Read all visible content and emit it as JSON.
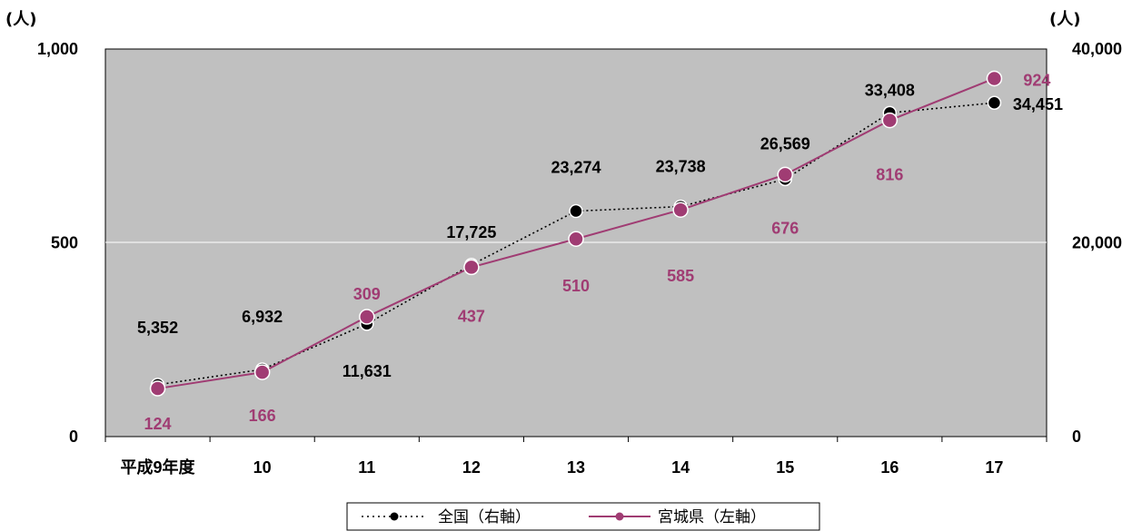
{
  "chart_data": {
    "type": "line",
    "left_axis_unit": "(人)",
    "right_axis_unit": "(人)",
    "categories": [
      "平成9年度",
      "10",
      "11",
      "12",
      "13",
      "14",
      "15",
      "16",
      "17"
    ],
    "left_ylim": [
      0,
      1000
    ],
    "left_ticks": [
      "0",
      "500",
      "1,000"
    ],
    "right_ylim": [
      0,
      40000
    ],
    "right_ticks": [
      "0",
      "20,000",
      "40,000"
    ],
    "grid": "horizontal at 500",
    "legend_position": "bottom-center",
    "series": [
      {
        "name": "全国（右軸）",
        "axis": "right",
        "style": "dotted",
        "color": "#000000",
        "values": [
          5352,
          6932,
          11631,
          17725,
          23274,
          23738,
          26569,
          33408,
          34451
        ],
        "labels": [
          "5,352",
          "6,932",
          "11,631",
          "17,725",
          "23,274",
          "23,738",
          "26,569",
          "33,408",
          "34,451"
        ]
      },
      {
        "name": "宮城県（左軸）",
        "axis": "left",
        "style": "solid",
        "color": "#a03c73",
        "values": [
          124,
          166,
          309,
          437,
          510,
          585,
          676,
          816,
          924
        ],
        "labels": [
          "124",
          "166",
          "309",
          "437",
          "510",
          "585",
          "676",
          "816",
          "924"
        ]
      }
    ]
  }
}
